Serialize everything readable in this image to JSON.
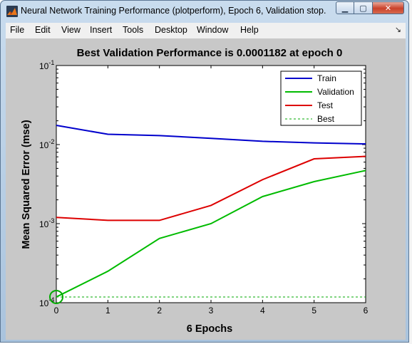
{
  "window": {
    "title": "Neural Network Training Performance (plotperform), Epoch 6, Validation stop.",
    "icon": "matlab-figure-icon",
    "buttons": {
      "minimize": "minimize-icon",
      "maximize": "maximize-icon",
      "close": "close-icon"
    }
  },
  "menu": {
    "items": [
      "File",
      "Edit",
      "View",
      "Insert",
      "Tools",
      "Desktop",
      "Window",
      "Help"
    ],
    "dock_icon": "dock-arrow-icon"
  },
  "chart_data": {
    "type": "line",
    "title": "Best Validation Performance is 0.0001182 at epoch 0",
    "xlabel": "6 Epochs",
    "ylabel": "Mean Squared Error  (mse)",
    "xlim": [
      0,
      6
    ],
    "ylim": [
      0.0001,
      0.1
    ],
    "yscale": "log",
    "x_ticks": [
      "0",
      "1",
      "2",
      "3",
      "4",
      "5",
      "6"
    ],
    "y_ticks": [
      {
        "base": "10",
        "exp": "-1",
        "value": 0.1
      },
      {
        "base": "10",
        "exp": "-2",
        "value": 0.01
      },
      {
        "base": "10",
        "exp": "-3",
        "value": 0.001
      },
      {
        "base": "10",
        "exp": "-4",
        "value": 0.0001
      }
    ],
    "grid": false,
    "legend_position": "top-right",
    "x": [
      0,
      1,
      2,
      3,
      4,
      5,
      6
    ],
    "series": [
      {
        "name": "Train",
        "color": "#0000cc",
        "style": "solid",
        "values": [
          0.0175,
          0.0135,
          0.013,
          0.012,
          0.011,
          0.0105,
          0.0102
        ]
      },
      {
        "name": "Validation",
        "color": "#00bb00",
        "style": "solid",
        "values": [
          0.0001182,
          0.00025,
          0.00065,
          0.001,
          0.0022,
          0.0034,
          0.0047
        ]
      },
      {
        "name": "Test",
        "color": "#dd0000",
        "style": "solid",
        "values": [
          0.0012,
          0.0011,
          0.0011,
          0.0017,
          0.0036,
          0.0066,
          0.0071
        ]
      },
      {
        "name": "Best",
        "color": "#00aa00",
        "style": "dashed",
        "value": 0.0001182
      }
    ],
    "best": {
      "epoch": 0,
      "value": 0.0001182,
      "marker": "circle",
      "color": "#00aa00"
    }
  }
}
